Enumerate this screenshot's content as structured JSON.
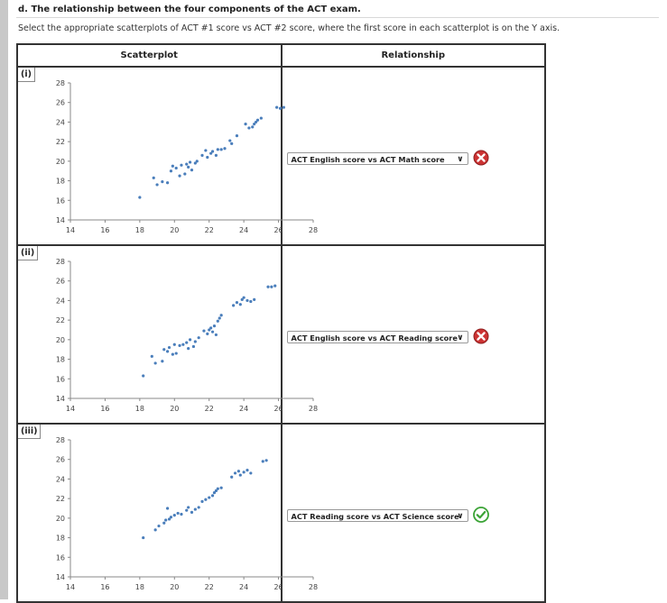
{
  "heading": "d. The relationship between the four components of the ACT exam.",
  "instruction": "Select the appropriate scatterplots of ACT #1 score vs ACT #2 score, where the first score in each scatterplot is on the Y axis.",
  "table": {
    "col_scatter": "Scatterplot",
    "col_relationship": "Relationship"
  },
  "rows": [
    {
      "label": "(i)",
      "selected": "ACT English score vs ACT Math score",
      "status": "incorrect",
      "status_icon": "x-circle-icon"
    },
    {
      "label": "(ii)",
      "selected": "ACT English score vs ACT Reading score",
      "status": "incorrect",
      "status_icon": "x-circle-icon"
    },
    {
      "label": "(iii)",
      "selected": "ACT Reading score vs ACT Science score",
      "status": "correct",
      "status_icon": "check-circle-icon"
    }
  ],
  "colors": {
    "point": "#4a7ebb",
    "incorrect": "#cc3333",
    "correct": "#3aa335"
  },
  "chart_data": [
    {
      "type": "scatter",
      "xlim": [
        14,
        28
      ],
      "ylim": [
        14,
        28
      ],
      "xticks": [
        14,
        16,
        18,
        20,
        22,
        24,
        26,
        28
      ],
      "yticks": [
        14,
        16,
        18,
        20,
        22,
        24,
        26,
        28
      ],
      "grid": false,
      "points": [
        [
          18,
          16.3
        ],
        [
          18.8,
          18.3
        ],
        [
          19,
          17.6
        ],
        [
          19.3,
          17.9
        ],
        [
          19.6,
          17.8
        ],
        [
          19.8,
          19
        ],
        [
          19.9,
          19.5
        ],
        [
          20.1,
          19.3
        ],
        [
          20.3,
          18.5
        ],
        [
          20.4,
          19.6
        ],
        [
          20.6,
          18.7
        ],
        [
          20.7,
          19.7
        ],
        [
          20.8,
          19.4
        ],
        [
          20.9,
          19.9
        ],
        [
          21,
          19.1
        ],
        [
          21.2,
          19.8
        ],
        [
          21.3,
          20
        ],
        [
          21.6,
          20.6
        ],
        [
          21.8,
          21.1
        ],
        [
          21.9,
          20.4
        ],
        [
          22.1,
          20.8
        ],
        [
          22.2,
          21
        ],
        [
          22.4,
          20.6
        ],
        [
          22.5,
          21.2
        ],
        [
          22.7,
          21.2
        ],
        [
          22.9,
          21.3
        ],
        [
          23.2,
          22.1
        ],
        [
          23.3,
          21.8
        ],
        [
          23.6,
          22.6
        ],
        [
          24.1,
          23.8
        ],
        [
          24.3,
          23.4
        ],
        [
          24.5,
          23.5
        ],
        [
          24.6,
          23.8
        ],
        [
          24.7,
          24
        ],
        [
          24.8,
          24.2
        ],
        [
          25,
          24.4
        ],
        [
          25.9,
          25.5
        ],
        [
          26.1,
          25.4
        ],
        [
          26.3,
          25.5
        ]
      ]
    },
    {
      "type": "scatter",
      "xlim": [
        14,
        28
      ],
      "ylim": [
        14,
        28
      ],
      "xticks": [
        14,
        16,
        18,
        20,
        22,
        24,
        26,
        28
      ],
      "yticks": [
        14,
        16,
        18,
        20,
        22,
        24,
        26,
        28
      ],
      "grid": false,
      "points": [
        [
          18.2,
          16.3
        ],
        [
          18.7,
          18.3
        ],
        [
          18.9,
          17.6
        ],
        [
          19.3,
          17.8
        ],
        [
          19.4,
          19
        ],
        [
          19.6,
          18.8
        ],
        [
          19.7,
          19.2
        ],
        [
          19.9,
          18.5
        ],
        [
          20,
          19.5
        ],
        [
          20.1,
          18.6
        ],
        [
          20.3,
          19.4
        ],
        [
          20.5,
          19.5
        ],
        [
          20.7,
          19.7
        ],
        [
          20.8,
          19.1
        ],
        [
          20.9,
          20
        ],
        [
          21.1,
          19.3
        ],
        [
          21.2,
          19.8
        ],
        [
          21.4,
          20.2
        ],
        [
          21.7,
          20.9
        ],
        [
          21.9,
          20.6
        ],
        [
          22,
          21
        ],
        [
          22.1,
          21.2
        ],
        [
          22.2,
          20.8
        ],
        [
          22.3,
          21.4
        ],
        [
          22.4,
          20.5
        ],
        [
          22.5,
          21.9
        ],
        [
          22.6,
          22.2
        ],
        [
          22.7,
          22.5
        ],
        [
          23.4,
          23.5
        ],
        [
          23.6,
          23.8
        ],
        [
          23.8,
          23.6
        ],
        [
          23.9,
          24.1
        ],
        [
          24,
          24.3
        ],
        [
          24.2,
          24
        ],
        [
          24.4,
          23.9
        ],
        [
          24.6,
          24.1
        ],
        [
          25.4,
          25.4
        ],
        [
          25.6,
          25.4
        ],
        [
          25.8,
          25.5
        ]
      ]
    },
    {
      "type": "scatter",
      "xlim": [
        14,
        28
      ],
      "ylim": [
        14,
        28
      ],
      "xticks": [
        14,
        16,
        18,
        20,
        22,
        24,
        26,
        28
      ],
      "yticks": [
        14,
        16,
        18,
        20,
        22,
        24,
        26,
        28
      ],
      "grid": false,
      "points": [
        [
          18.2,
          18
        ],
        [
          18.9,
          18.8
        ],
        [
          19.1,
          19.2
        ],
        [
          19.4,
          19.5
        ],
        [
          19.5,
          19.8
        ],
        [
          19.6,
          21
        ],
        [
          19.7,
          19.9
        ],
        [
          19.8,
          20.1
        ],
        [
          20,
          20.3
        ],
        [
          20.2,
          20.5
        ],
        [
          20.4,
          20.4
        ],
        [
          20.7,
          20.8
        ],
        [
          20.8,
          21.1
        ],
        [
          21,
          20.6
        ],
        [
          21.2,
          20.9
        ],
        [
          21.4,
          21.1
        ],
        [
          21.6,
          21.7
        ],
        [
          21.8,
          21.9
        ],
        [
          22,
          22.1
        ],
        [
          22.2,
          22.3
        ],
        [
          22.3,
          22.6
        ],
        [
          22.4,
          22.8
        ],
        [
          22.5,
          23
        ],
        [
          22.7,
          23.1
        ],
        [
          23.3,
          24.2
        ],
        [
          23.5,
          24.6
        ],
        [
          23.7,
          24.8
        ],
        [
          23.8,
          24.4
        ],
        [
          24,
          24.7
        ],
        [
          24.2,
          24.9
        ],
        [
          24.4,
          24.6
        ],
        [
          25.1,
          25.8
        ],
        [
          25.3,
          25.9
        ]
      ]
    }
  ]
}
